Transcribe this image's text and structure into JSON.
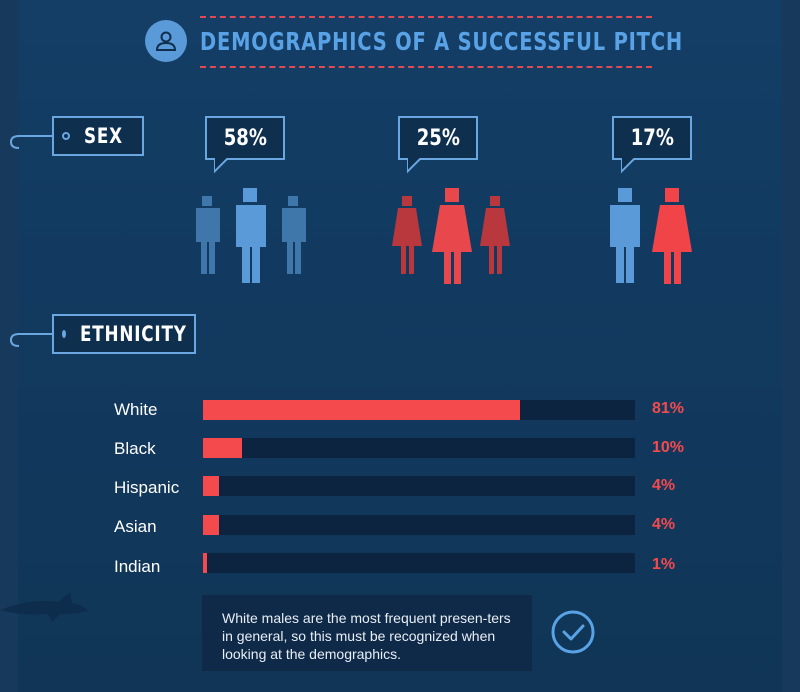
{
  "header": {
    "title": "DEMOGRAPHICS OF A SUCCESSFUL PITCH",
    "icon": "user-icon"
  },
  "sections": {
    "sex_label": "SEX",
    "ethnicity_label": "ETHNICITY"
  },
  "sex_groups": [
    {
      "percent": "58%",
      "type": "male",
      "color": "#5a9ad8"
    },
    {
      "percent": "25%",
      "type": "female",
      "color": "#e8474c"
    },
    {
      "percent": "17%",
      "type": "mixed",
      "colors": [
        "#5a9ad8",
        "#f04448"
      ]
    }
  ],
  "chart_data": {
    "type": "bar",
    "orientation": "horizontal",
    "categories": [
      "White",
      "Black",
      "Hispanic",
      "Asian",
      "Indian"
    ],
    "values": [
      81,
      10,
      4,
      4,
      1
    ],
    "value_labels": [
      "81%",
      "10%",
      "4%",
      "4%",
      "1%"
    ],
    "xlim": [
      0,
      100
    ],
    "bar_color": "#f44a4e",
    "track_color": "#0c2440"
  },
  "note": {
    "text": "White males are the most frequent presen-ters in general, so this must be recognized when looking at the demographics.",
    "icon": "check-circle-icon"
  }
}
